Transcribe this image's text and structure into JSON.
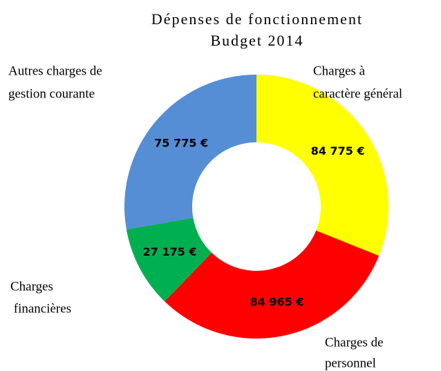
{
  "chart_data": {
    "type": "donut",
    "title": "Dépenses de fonctionnement",
    "subtitle": "Budget 2014",
    "categories": [
      [
        "Charges à",
        "caractère général"
      ],
      [
        "Charges de",
        "personnel"
      ],
      [
        "Charges",
        " financières"
      ],
      [
        "Autres charges de",
        "gestion courante"
      ]
    ],
    "values": [
      84775,
      84965,
      27175,
      75775
    ],
    "value_labels": [
      "84 775 €",
      "84 965 €",
      "27 175 €",
      "75 775 €"
    ],
    "colors": [
      "#ffff00",
      "#ff0000",
      "#00b050",
      "#558ed5"
    ]
  }
}
